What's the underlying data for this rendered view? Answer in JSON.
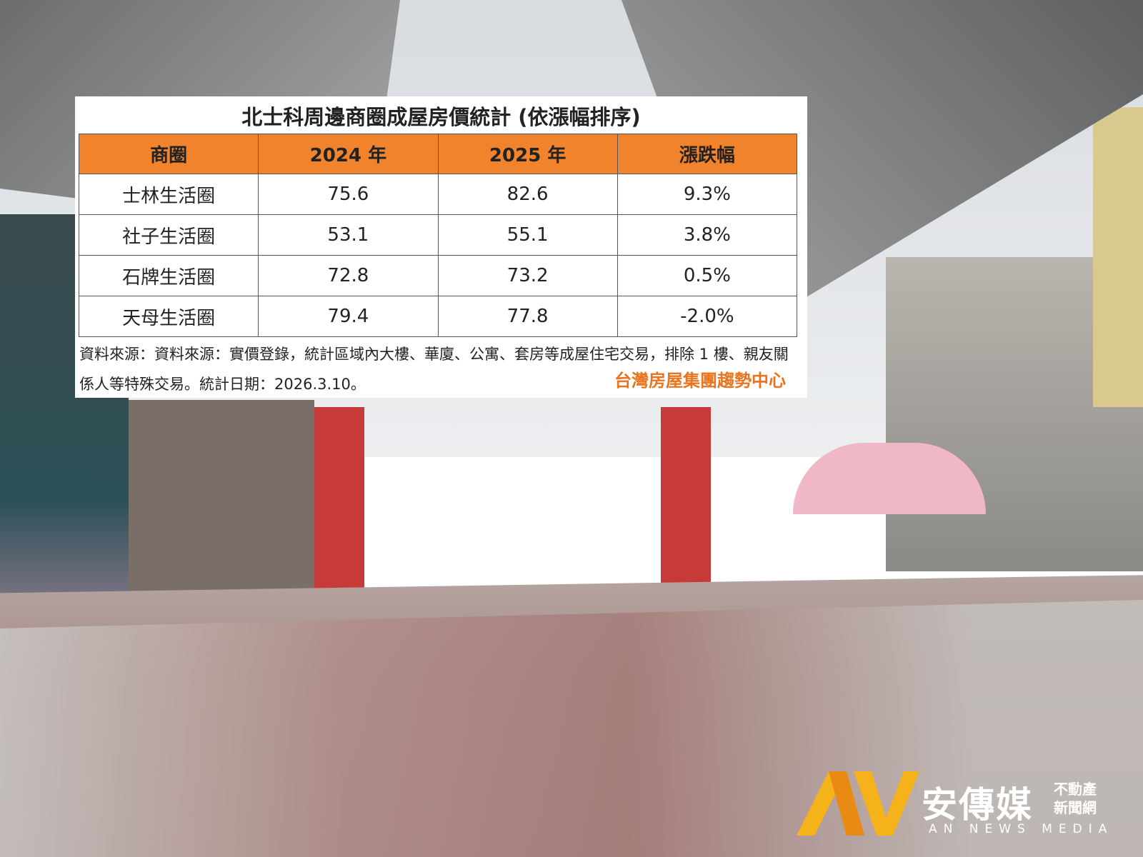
{
  "table": {
    "title": "北士科周邊商圈成屋房價統計 (依漲幅排序)",
    "header": [
      "商圈",
      "2024 年",
      "2025 年",
      "漲跌幅"
    ],
    "rows": [
      [
        "士林生活圈",
        75.6,
        82.6,
        "9.3%"
      ],
      [
        "社子生活圈",
        53.1,
        55.1,
        "3.8%"
      ],
      [
        "石牌生活圈",
        72.8,
        73.2,
        "0.5%"
      ],
      [
        "天母生活圈",
        79.4,
        77.8,
        "-2.0%"
      ]
    ],
    "source": "資料來源：資料來源：實價登錄，統計區域內大樓、華廈、公寓、套房等成屋住宅交易，排除 1 樓、親友關係人等特殊交易。統計日期：2026.3.10。",
    "credit": "台灣房屋集團趨勢中心"
  },
  "logo": {
    "name": "安傳媒",
    "tagline": [
      "不動產",
      "新聞網"
    ],
    "english": "AN NEWS MEDIA"
  }
}
